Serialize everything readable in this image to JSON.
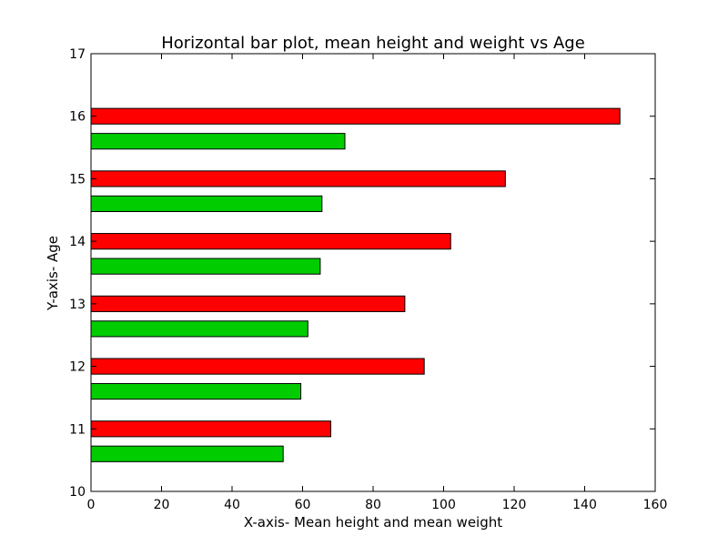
{
  "chart_data": {
    "type": "bar",
    "orientation": "horizontal",
    "title": "Horizontal bar plot, mean height and weight vs Age",
    "xlabel": "X-axis- Mean height and mean weight",
    "ylabel": "Y-axis- Age",
    "xlim": [
      0,
      160
    ],
    "ylim": [
      10,
      17
    ],
    "xticks": [
      "0",
      "20",
      "40",
      "60",
      "80",
      "100",
      "120",
      "140",
      "160"
    ],
    "yticks": [
      "10",
      "11",
      "12",
      "13",
      "14",
      "15",
      "16",
      "17"
    ],
    "categories": [
      11,
      12,
      13,
      14,
      15,
      16
    ],
    "series": [
      {
        "color": "#ff0000",
        "offset": 0,
        "values": [
          68,
          94.5,
          89,
          102,
          117.5,
          150
        ]
      },
      {
        "color": "#00cc00",
        "offset": -0.4,
        "values": [
          54.5,
          59.5,
          61.5,
          65,
          65.5,
          72
        ]
      }
    ],
    "bar_height": 0.25,
    "grid": false,
    "legend": "none"
  }
}
